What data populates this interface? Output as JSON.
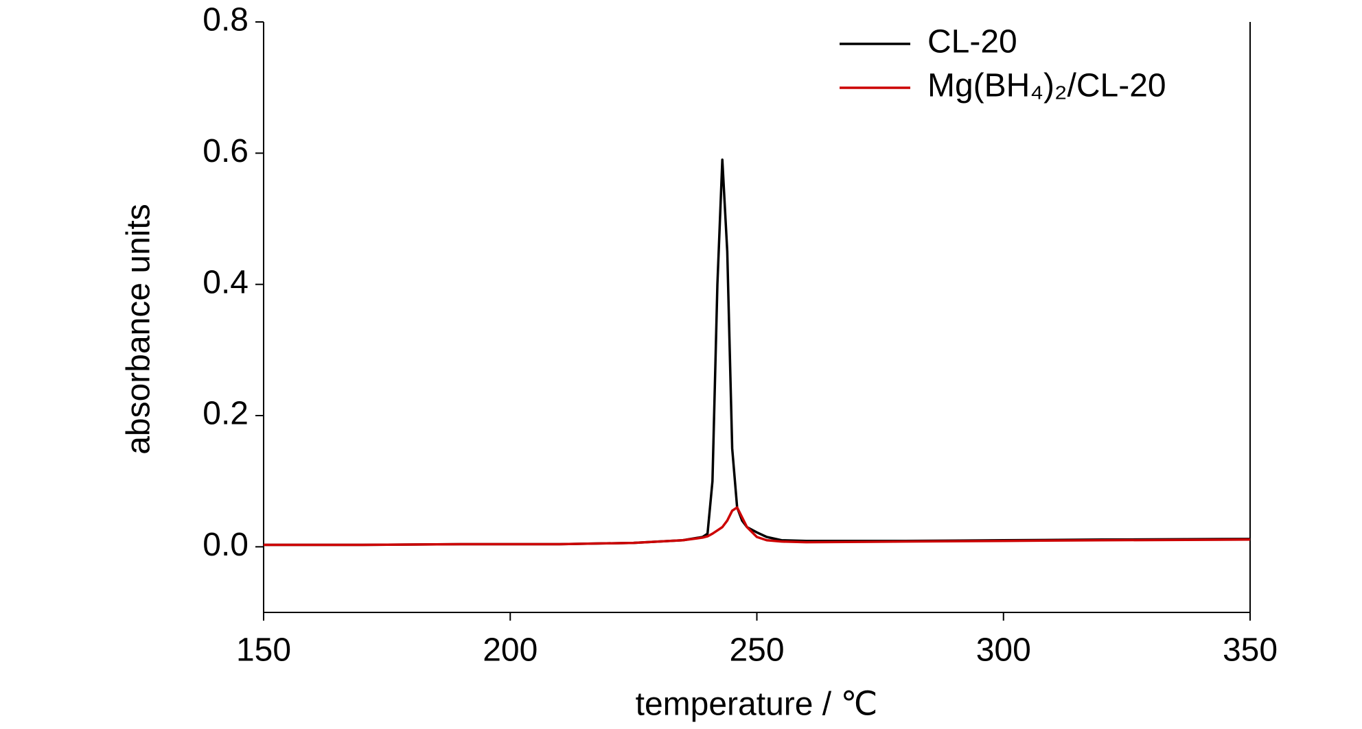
{
  "chart_data": {
    "type": "line",
    "x_label": "temperature / ℃",
    "y_label": "absorbance units",
    "x": [
      150,
      170,
      190,
      210,
      225,
      235,
      239,
      240,
      241,
      242,
      243,
      244,
      245,
      246,
      247,
      248,
      250,
      252,
      255,
      260,
      280,
      300,
      320,
      350
    ],
    "series": [
      {
        "name": "CL-20",
        "color": "#000000",
        "values": [
          0.003,
          0.003,
          0.004,
          0.004,
          0.006,
          0.01,
          0.015,
          0.02,
          0.1,
          0.4,
          0.59,
          0.45,
          0.15,
          0.06,
          0.04,
          0.03,
          0.022,
          0.015,
          0.01,
          0.009,
          0.009,
          0.01,
          0.011,
          0.012
        ]
      },
      {
        "name": "Mg(BH₄)₂/CL-20",
        "color": "#cc0000",
        "values": [
          0.003,
          0.003,
          0.004,
          0.004,
          0.006,
          0.01,
          0.014,
          0.016,
          0.02,
          0.025,
          0.03,
          0.04,
          0.055,
          0.06,
          0.045,
          0.03,
          0.015,
          0.01,
          0.008,
          0.007,
          0.008,
          0.009,
          0.01,
          0.011
        ]
      }
    ],
    "xlim": [
      150,
      350
    ],
    "xticks": [
      150,
      200,
      250,
      300,
      350
    ],
    "ylim": [
      -0.1,
      0.8
    ],
    "yticks": [
      {
        "value": 0,
        "label": "0.0"
      },
      0.2,
      0.4,
      0.6,
      0.8
    ],
    "legend": "top-right"
  }
}
